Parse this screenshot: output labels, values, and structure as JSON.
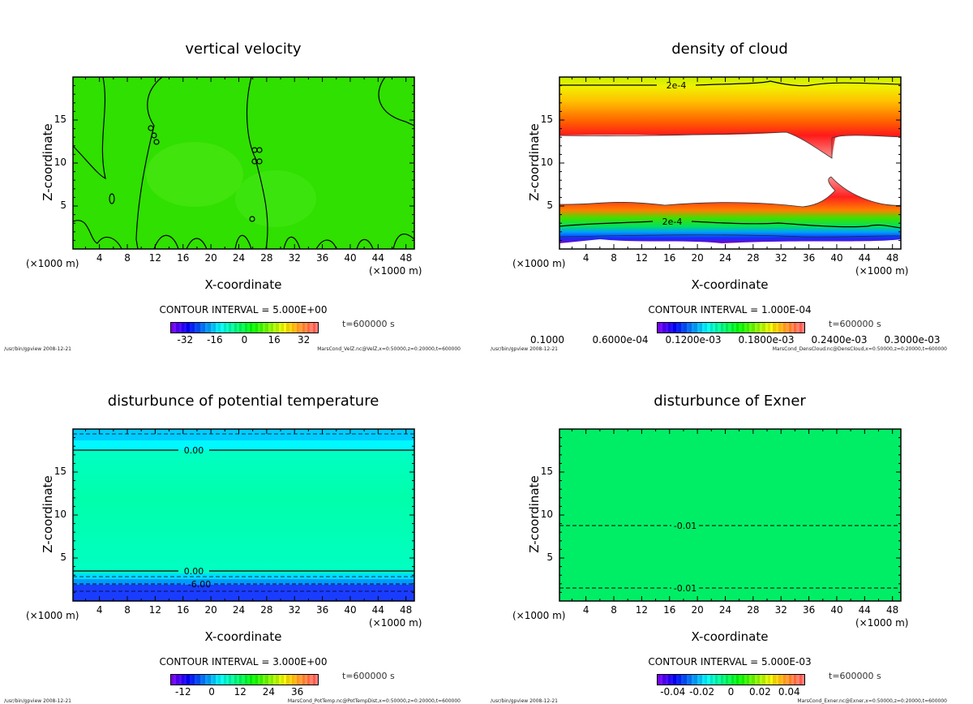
{
  "footer_left": "/usr/bin/gpview  2008-12-21",
  "chart_data": [
    {
      "type": "heatmap",
      "title": "vertical velocity",
      "xlabel": "X-coordinate",
      "ylabel": "Z-coordinate",
      "x_unit": "(×1000 m)",
      "xlim": [
        0,
        49.2
      ],
      "ylim": [
        0,
        20
      ],
      "xticks": [
        "4",
        "8",
        "12",
        "16",
        "20",
        "24",
        "28",
        "32",
        "36",
        "40",
        "44",
        "48"
      ],
      "yticks": [
        "5",
        "10",
        "15"
      ],
      "contour_interval": "CONTOUR INTERVAL = 5.000E+00",
      "contour_labels": [
        "0.0",
        "0.0"
      ],
      "colorbar": {
        "labels": [
          "-32",
          "-16",
          "0",
          "16",
          "32"
        ],
        "values": [
          -32,
          -16,
          0,
          16,
          32
        ],
        "range": [
          -40,
          40
        ]
      },
      "time": "t=600000 s",
      "source": "MarsCond_VelZ.nc@VelZ,x=0:50000,z=0:20000,t=600000"
    },
    {
      "type": "heatmap",
      "title": "density of cloud",
      "xlabel": "X-coordinate",
      "ylabel": "Z-coordinate",
      "x_unit": "(×1000 m)",
      "xlim": [
        0,
        49.2
      ],
      "ylim": [
        0,
        20
      ],
      "xticks": [
        "4",
        "8",
        "12",
        "16",
        "20",
        "24",
        "28",
        "32",
        "36",
        "40",
        "44",
        "48"
      ],
      "yticks": [
        "5",
        "10",
        "15"
      ],
      "contour_interval": "CONTOUR INTERVAL = 1.000E-04",
      "contour_labels": [
        "2e-4",
        "2e-4"
      ],
      "colorbar": {
        "labels": [
          "0.1000",
          "0.6000e-04",
          "0.1200e-03",
          "0.1800e-03",
          "0.2400e-03",
          "0.3000e-03"
        ]
      },
      "time": "t=600000 s",
      "source": "MarsCond_DensCloud.nc@DensCloud,x=0:50000,z=0:20000,t=600000"
    },
    {
      "type": "heatmap",
      "title": "disturbunce of potential temperature",
      "xlabel": "X-coordinate",
      "ylabel": "Z-coordinate",
      "x_unit": "(×1000 m)",
      "xlim": [
        0,
        49.2
      ],
      "ylim": [
        0,
        20
      ],
      "xticks": [
        "4",
        "8",
        "12",
        "16",
        "20",
        "24",
        "28",
        "32",
        "36",
        "40",
        "44",
        "48"
      ],
      "yticks": [
        "5",
        "10",
        "15"
      ],
      "contour_interval": "CONTOUR INTERVAL = 3.000E+00",
      "contour_labels": [
        "0.00",
        "0.00",
        "-6.00"
      ],
      "colorbar": {
        "labels": [
          "-12",
          "0",
          "12",
          "24",
          "36"
        ],
        "values": [
          -12,
          0,
          12,
          24,
          36
        ],
        "range": [
          -17.4,
          45
        ]
      },
      "time": "t=600000 s",
      "source": "MarsCond_PotTemp.nc@PotTempDist,x=0:50000,z=0:20000,t=600000"
    },
    {
      "type": "heatmap",
      "title": "disturbunce of Exner",
      "xlabel": "X-coordinate",
      "ylabel": "Z-coordinate",
      "x_unit": "(×1000 m)",
      "xlim": [
        0,
        49.2
      ],
      "ylim": [
        0,
        20
      ],
      "xticks": [
        "4",
        "8",
        "12",
        "16",
        "20",
        "24",
        "28",
        "32",
        "36",
        "40",
        "44",
        "48"
      ],
      "yticks": [
        "5",
        "10",
        "15"
      ],
      "contour_interval": "CONTOUR INTERVAL = 5.000E-03",
      "contour_labels": [
        "-0.01",
        "-0.01"
      ],
      "colorbar": {
        "labels": [
          "-0.04",
          "-0.02",
          "0",
          "0.02",
          "0.04"
        ],
        "values": [
          -0.04,
          -0.02,
          0,
          0.02,
          0.04
        ],
        "range": [
          -0.051,
          0.051
        ]
      },
      "time": "t=600000 s",
      "source": "MarsCond_Exner.nc@Exner,x=0:50000,z=0:20000,t=600000"
    }
  ]
}
